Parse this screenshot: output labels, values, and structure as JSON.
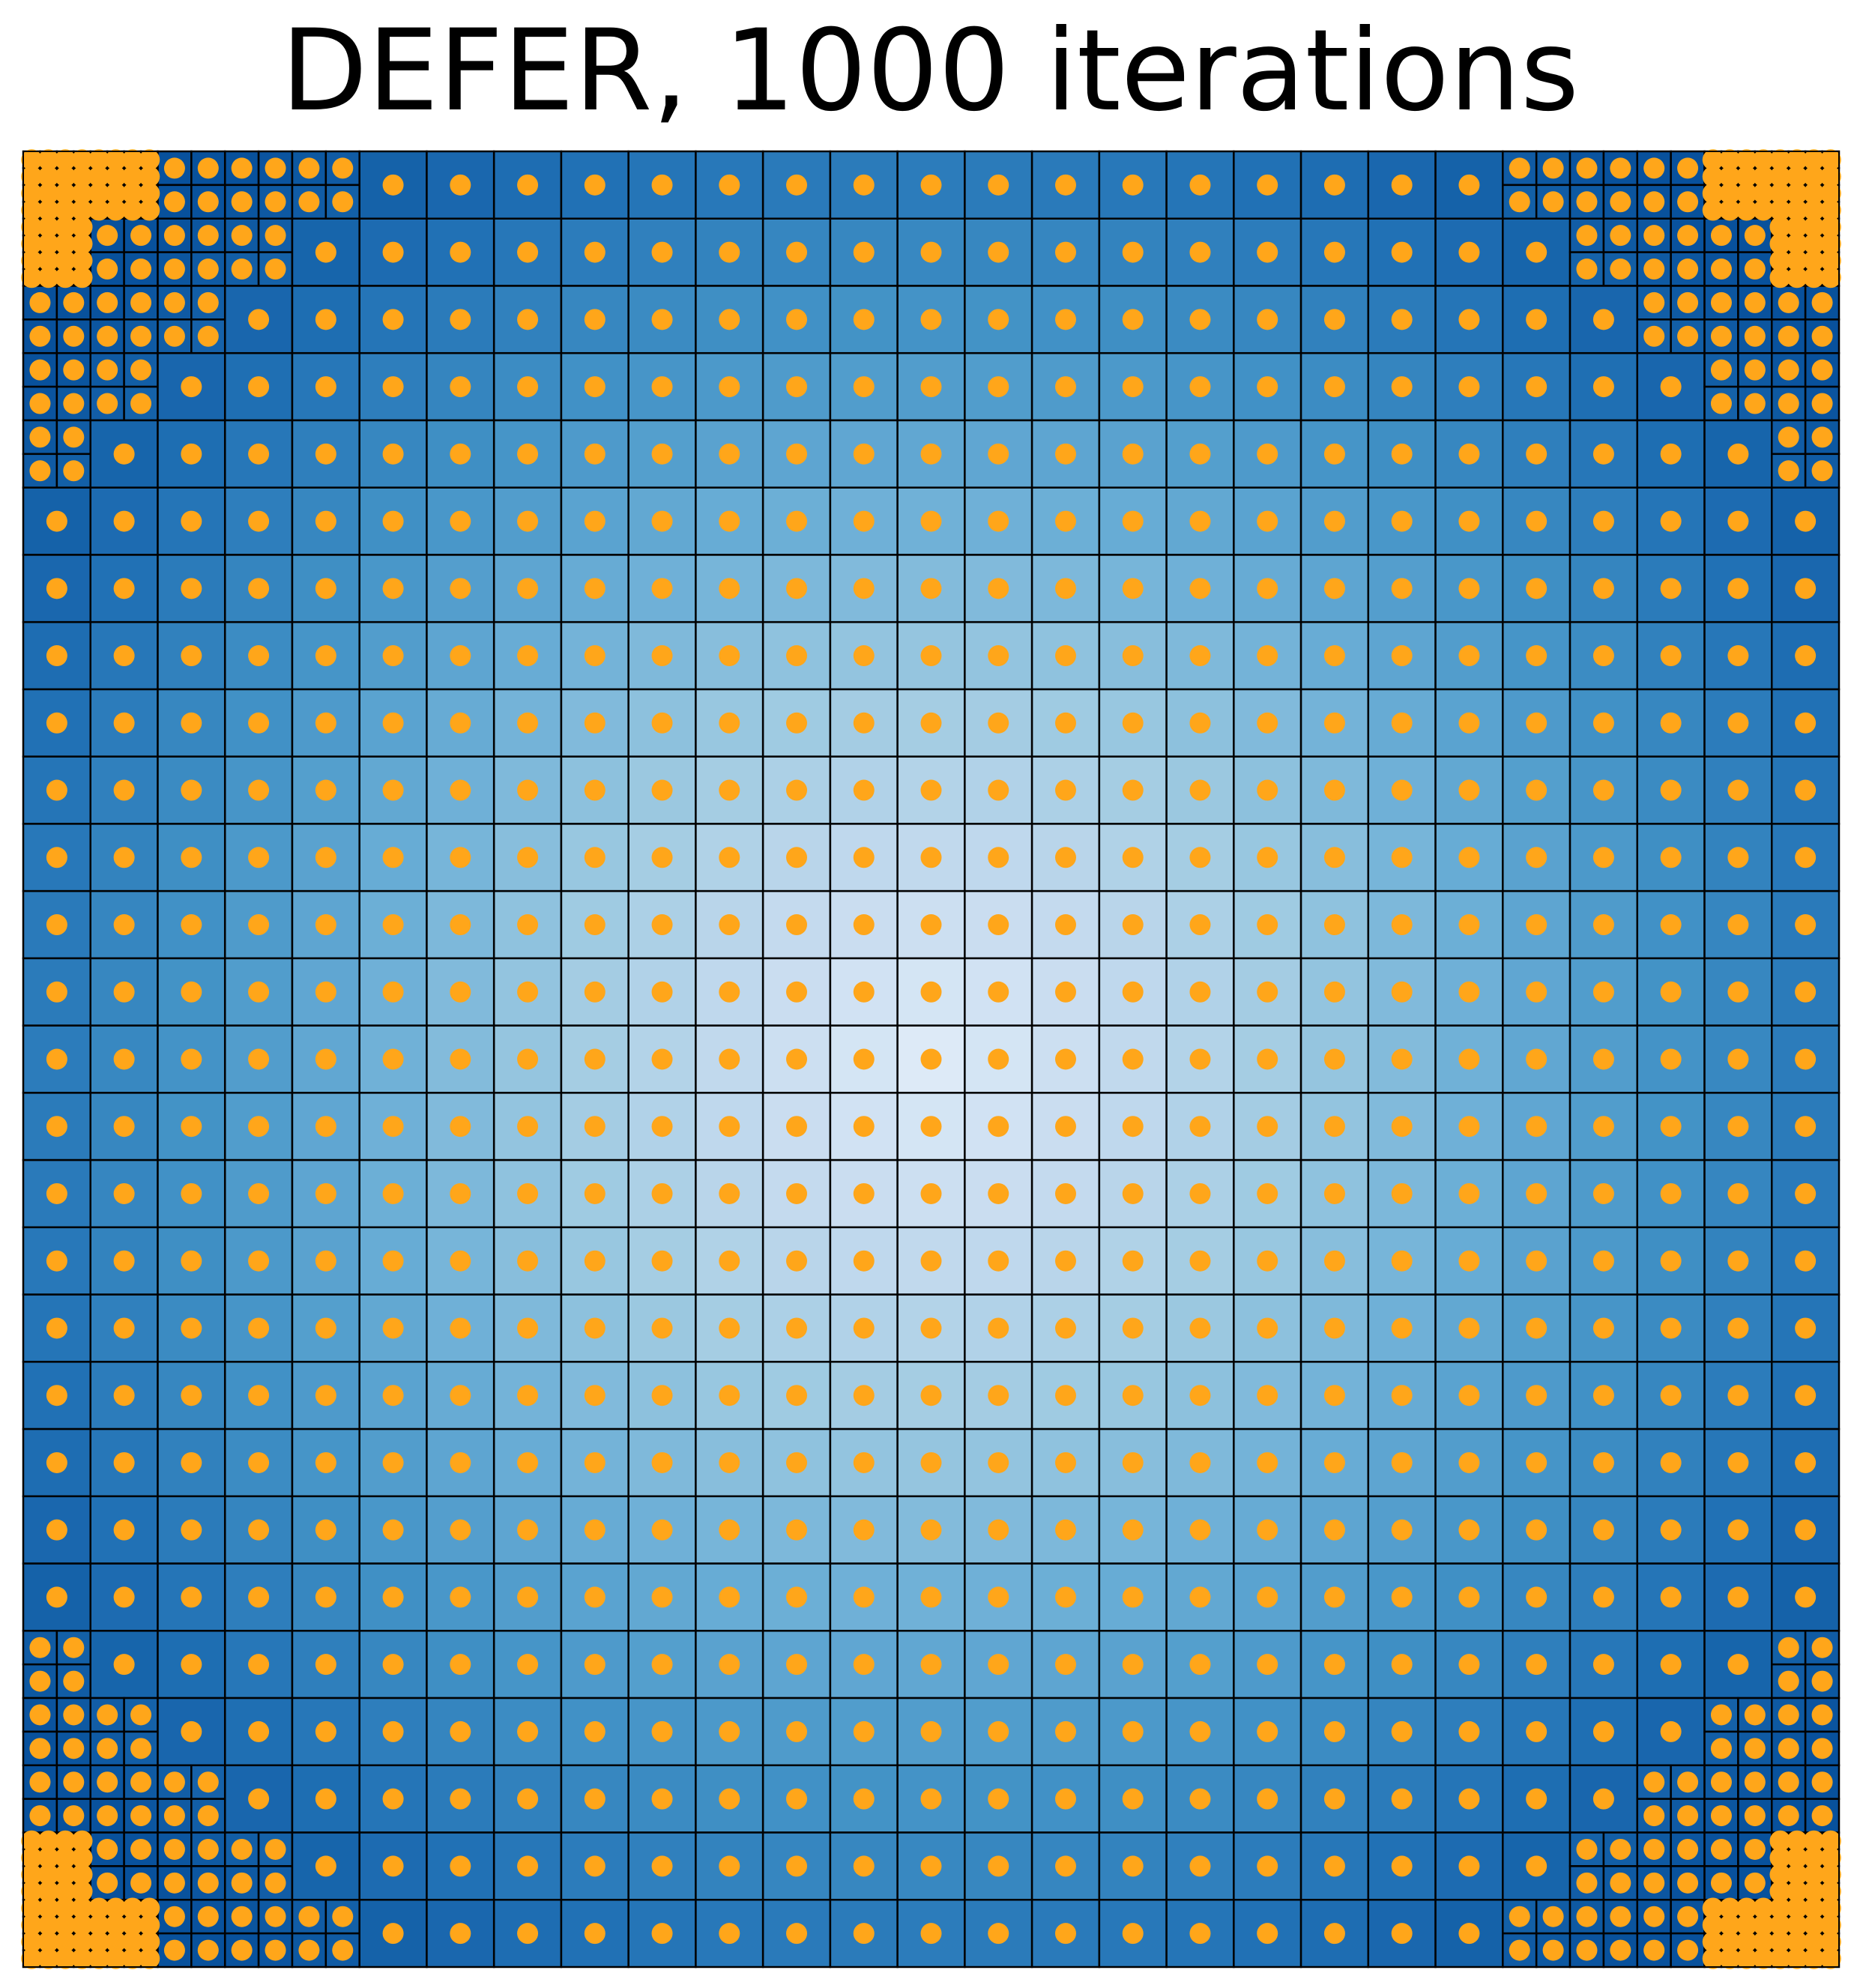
{
  "chart_data": {
    "type": "heatmap",
    "title": "DEFER, 1000 iterations",
    "xlabel": "",
    "ylabel": "",
    "xlim": [
      0,
      1
    ],
    "ylim": [
      0,
      1
    ],
    "grid_cells": 27,
    "corner_refinement_cells": 5,
    "colormap": "Blues",
    "point_color": "#FFA61A",
    "cell_edge_color": "#000000",
    "legend": "none",
    "axes_ticks": "none"
  }
}
